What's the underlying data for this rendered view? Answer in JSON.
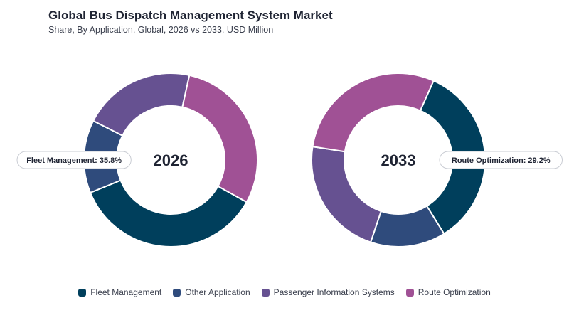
{
  "header": {
    "title": "Global Bus Dispatch Management System Market",
    "subtitle": "Share, By Application, Global, 2026 vs 2033, USD Million"
  },
  "colors": {
    "Fleet Management": "#003f5c",
    "Other Application": "#2f4b7c",
    "Passenger Information Systems": "#665191",
    "Route Optimization": "#a05195"
  },
  "legend": {
    "items": [
      {
        "label": "Fleet Management",
        "color": "#003f5c"
      },
      {
        "label": "Other Application",
        "color": "#2f4b7c"
      },
      {
        "label": "Passenger Information Systems",
        "color": "#665191"
      },
      {
        "label": "Route Optimization",
        "color": "#a05195"
      }
    ]
  },
  "chart_data": [
    {
      "type": "pie",
      "center_label": "2026",
      "categories": [
        "Fleet Management",
        "Other Application",
        "Passenger Information Systems",
        "Route Optimization"
      ],
      "values": [
        35.8,
        13.6,
        21.0,
        29.6
      ],
      "callout": {
        "text": "Fleet Management: 35.8%",
        "category": "Fleet Management",
        "side": "left"
      }
    },
    {
      "type": "pie",
      "center_label": "2033",
      "categories": [
        "Fleet Management",
        "Other Application",
        "Passenger Information Systems",
        "Route Optimization"
      ],
      "values": [
        34.5,
        14.0,
        22.3,
        29.2
      ],
      "callout": {
        "text": "Route Optimization: 29.2%",
        "category": "Route Optimization",
        "side": "right"
      }
    }
  ]
}
